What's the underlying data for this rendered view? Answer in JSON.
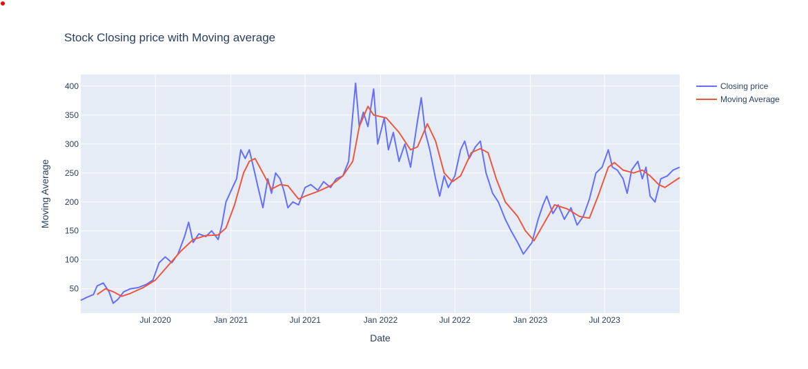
{
  "chart_data": {
    "type": "line",
    "title": "Stock Closing price with Moving average",
    "xlabel": "Date",
    "ylabel": "Moving Average",
    "x_range": [
      "2020-01-01",
      "2023-12-31"
    ],
    "y_range": [
      8,
      420
    ],
    "x_ticks": [
      {
        "date": "2020-07-01",
        "label": "Jul 2020"
      },
      {
        "date": "2021-01-01",
        "label": "Jan 2021"
      },
      {
        "date": "2021-07-01",
        "label": "Jul 2021"
      },
      {
        "date": "2022-01-01",
        "label": "Jan 2022"
      },
      {
        "date": "2022-07-01",
        "label": "Jul 2022"
      },
      {
        "date": "2023-01-01",
        "label": "Jan 2023"
      },
      {
        "date": "2023-07-01",
        "label": "Jul 2023"
      }
    ],
    "y_ticks": [
      50,
      100,
      150,
      200,
      250,
      300,
      350,
      400
    ],
    "grid": true,
    "legend_position": "top-right",
    "series": [
      {
        "name": "Closing price",
        "color": "#636efa",
        "points": [
          [
            "2020-01-01",
            30
          ],
          [
            "2020-01-15",
            35
          ],
          [
            "2020-02-01",
            40
          ],
          [
            "2020-02-10",
            55
          ],
          [
            "2020-02-25",
            60
          ],
          [
            "2020-03-10",
            45
          ],
          [
            "2020-03-20",
            25
          ],
          [
            "2020-04-01",
            32
          ],
          [
            "2020-04-15",
            45
          ],
          [
            "2020-05-01",
            50
          ],
          [
            "2020-05-20",
            52
          ],
          [
            "2020-06-10",
            58
          ],
          [
            "2020-06-25",
            65
          ],
          [
            "2020-07-10",
            95
          ],
          [
            "2020-07-25",
            105
          ],
          [
            "2020-08-10",
            95
          ],
          [
            "2020-08-25",
            110
          ],
          [
            "2020-09-10",
            140
          ],
          [
            "2020-09-20",
            165
          ],
          [
            "2020-10-01",
            130
          ],
          [
            "2020-10-15",
            145
          ],
          [
            "2020-11-01",
            140
          ],
          [
            "2020-11-15",
            150
          ],
          [
            "2020-12-01",
            135
          ],
          [
            "2020-12-10",
            160
          ],
          [
            "2020-12-20",
            200
          ],
          [
            "2021-01-05",
            225
          ],
          [
            "2021-01-15",
            240
          ],
          [
            "2021-01-25",
            290
          ],
          [
            "2021-02-05",
            275
          ],
          [
            "2021-02-15",
            290
          ],
          [
            "2021-02-25",
            260
          ],
          [
            "2021-03-10",
            220
          ],
          [
            "2021-03-20",
            190
          ],
          [
            "2021-04-01",
            240
          ],
          [
            "2021-04-10",
            215
          ],
          [
            "2021-04-20",
            250
          ],
          [
            "2021-05-01",
            240
          ],
          [
            "2021-05-10",
            220
          ],
          [
            "2021-05-20",
            190
          ],
          [
            "2021-06-01",
            200
          ],
          [
            "2021-06-15",
            195
          ],
          [
            "2021-07-01",
            225
          ],
          [
            "2021-07-15",
            230
          ],
          [
            "2021-08-01",
            220
          ],
          [
            "2021-08-15",
            235
          ],
          [
            "2021-09-01",
            225
          ],
          [
            "2021-09-15",
            240
          ],
          [
            "2021-10-01",
            245
          ],
          [
            "2021-10-15",
            270
          ],
          [
            "2021-10-25",
            350
          ],
          [
            "2021-11-01",
            405
          ],
          [
            "2021-11-10",
            330
          ],
          [
            "2021-11-20",
            355
          ],
          [
            "2021-12-01",
            330
          ],
          [
            "2021-12-15",
            395
          ],
          [
            "2021-12-25",
            300
          ],
          [
            "2022-01-10",
            345
          ],
          [
            "2022-01-20",
            290
          ],
          [
            "2022-02-01",
            320
          ],
          [
            "2022-02-15",
            270
          ],
          [
            "2022-03-01",
            300
          ],
          [
            "2022-03-15",
            260
          ],
          [
            "2022-04-01",
            340
          ],
          [
            "2022-04-10",
            380
          ],
          [
            "2022-04-20",
            320
          ],
          [
            "2022-05-01",
            290
          ],
          [
            "2022-05-15",
            240
          ],
          [
            "2022-05-25",
            210
          ],
          [
            "2022-06-05",
            245
          ],
          [
            "2022-06-15",
            225
          ],
          [
            "2022-07-01",
            245
          ],
          [
            "2022-07-15",
            290
          ],
          [
            "2022-07-25",
            305
          ],
          [
            "2022-08-05",
            275
          ],
          [
            "2022-08-20",
            295
          ],
          [
            "2022-09-01",
            305
          ],
          [
            "2022-09-15",
            250
          ],
          [
            "2022-10-01",
            215
          ],
          [
            "2022-10-15",
            200
          ],
          [
            "2022-11-01",
            170
          ],
          [
            "2022-11-15",
            150
          ],
          [
            "2022-12-01",
            130
          ],
          [
            "2022-12-15",
            110
          ],
          [
            "2023-01-05",
            130
          ],
          [
            "2023-01-20",
            170
          ],
          [
            "2023-02-01",
            195
          ],
          [
            "2023-02-10",
            210
          ],
          [
            "2023-02-25",
            180
          ],
          [
            "2023-03-10",
            195
          ],
          [
            "2023-03-25",
            170
          ],
          [
            "2023-04-10",
            190
          ],
          [
            "2023-04-25",
            160
          ],
          [
            "2023-05-10",
            175
          ],
          [
            "2023-05-25",
            205
          ],
          [
            "2023-06-10",
            250
          ],
          [
            "2023-06-25",
            260
          ],
          [
            "2023-07-10",
            290
          ],
          [
            "2023-07-20",
            260
          ],
          [
            "2023-08-01",
            255
          ],
          [
            "2023-08-15",
            240
          ],
          [
            "2023-08-25",
            215
          ],
          [
            "2023-09-05",
            255
          ],
          [
            "2023-09-20",
            270
          ],
          [
            "2023-10-01",
            240
          ],
          [
            "2023-10-10",
            260
          ],
          [
            "2023-10-20",
            210
          ],
          [
            "2023-11-01",
            200
          ],
          [
            "2023-11-15",
            240
          ],
          [
            "2023-12-01",
            245
          ],
          [
            "2023-12-15",
            255
          ],
          [
            "2023-12-31",
            260
          ]
        ]
      },
      {
        "name": "Moving Average",
        "color": "#ef553b",
        "points": [
          [
            "2020-02-10",
            40
          ],
          [
            "2020-03-01",
            50
          ],
          [
            "2020-03-20",
            45
          ],
          [
            "2020-04-10",
            37
          ],
          [
            "2020-05-01",
            42
          ],
          [
            "2020-06-01",
            52
          ],
          [
            "2020-07-01",
            65
          ],
          [
            "2020-08-01",
            90
          ],
          [
            "2020-09-01",
            115
          ],
          [
            "2020-10-01",
            135
          ],
          [
            "2020-11-01",
            142
          ],
          [
            "2020-12-01",
            143
          ],
          [
            "2020-12-20",
            155
          ],
          [
            "2021-01-10",
            195
          ],
          [
            "2021-02-01",
            250
          ],
          [
            "2021-02-15",
            270
          ],
          [
            "2021-03-01",
            275
          ],
          [
            "2021-03-20",
            250
          ],
          [
            "2021-04-10",
            222
          ],
          [
            "2021-05-01",
            230
          ],
          [
            "2021-05-20",
            228
          ],
          [
            "2021-06-15",
            205
          ],
          [
            "2021-07-01",
            210
          ],
          [
            "2021-08-01",
            218
          ],
          [
            "2021-09-01",
            228
          ],
          [
            "2021-10-01",
            245
          ],
          [
            "2021-10-25",
            270
          ],
          [
            "2021-11-10",
            330
          ],
          [
            "2021-12-01",
            365
          ],
          [
            "2021-12-15",
            350
          ],
          [
            "2022-01-15",
            345
          ],
          [
            "2022-02-15",
            320
          ],
          [
            "2022-03-15",
            290
          ],
          [
            "2022-04-01",
            295
          ],
          [
            "2022-04-25",
            335
          ],
          [
            "2022-05-15",
            305
          ],
          [
            "2022-06-05",
            250
          ],
          [
            "2022-06-25",
            235
          ],
          [
            "2022-07-15",
            245
          ],
          [
            "2022-08-10",
            285
          ],
          [
            "2022-09-01",
            292
          ],
          [
            "2022-09-20",
            285
          ],
          [
            "2022-10-10",
            240
          ],
          [
            "2022-11-01",
            200
          ],
          [
            "2022-12-01",
            175
          ],
          [
            "2022-12-20",
            150
          ],
          [
            "2023-01-10",
            133
          ],
          [
            "2023-02-01",
            160
          ],
          [
            "2023-03-01",
            195
          ],
          [
            "2023-04-01",
            188
          ],
          [
            "2023-05-01",
            175
          ],
          [
            "2023-05-25",
            172
          ],
          [
            "2023-06-15",
            210
          ],
          [
            "2023-07-10",
            260
          ],
          [
            "2023-07-25",
            268
          ],
          [
            "2023-08-15",
            255
          ],
          [
            "2023-09-10",
            250
          ],
          [
            "2023-10-01",
            255
          ],
          [
            "2023-10-20",
            245
          ],
          [
            "2023-11-10",
            230
          ],
          [
            "2023-11-25",
            225
          ],
          [
            "2023-12-31",
            242
          ]
        ]
      }
    ]
  },
  "colors": {
    "plot_background": "#e5ecf6",
    "gridline": "#ffffff",
    "text": "#2a3f5f",
    "marker": "#ff0000"
  }
}
